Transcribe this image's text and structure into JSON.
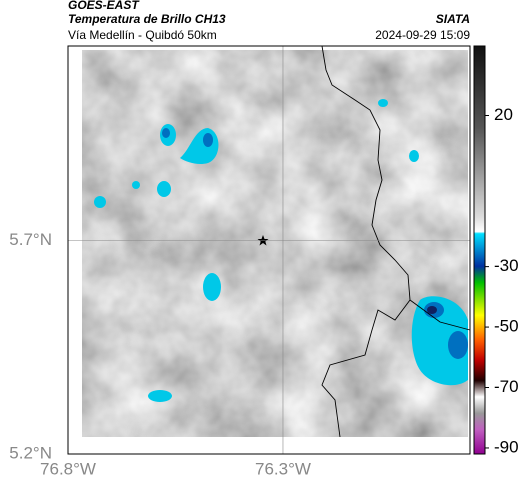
{
  "header": {
    "title": "GOES-EAST",
    "subtitle": "Temperatura de Brillo CH13",
    "region": "Vía Medellín - Quibdó 50km",
    "source": "SIATA",
    "datetime": "2024-09-29 15:09"
  },
  "map": {
    "xlim": [
      -76.8,
      -75.865
    ],
    "ylim": [
      5.2,
      6.155
    ],
    "xticks": [
      {
        "value": -76.8,
        "label": "76.8°W"
      },
      {
        "value": -76.3,
        "label": "76.3°W"
      }
    ],
    "yticks": [
      {
        "value": 5.2,
        "label": "5.2°N"
      },
      {
        "value": 5.7,
        "label": "5.7°N"
      }
    ],
    "grid": true
  },
  "colorbar": {
    "clim": [
      -92,
      43
    ],
    "ticks": [
      20,
      -30,
      -50,
      -70,
      -90
    ]
  }
}
